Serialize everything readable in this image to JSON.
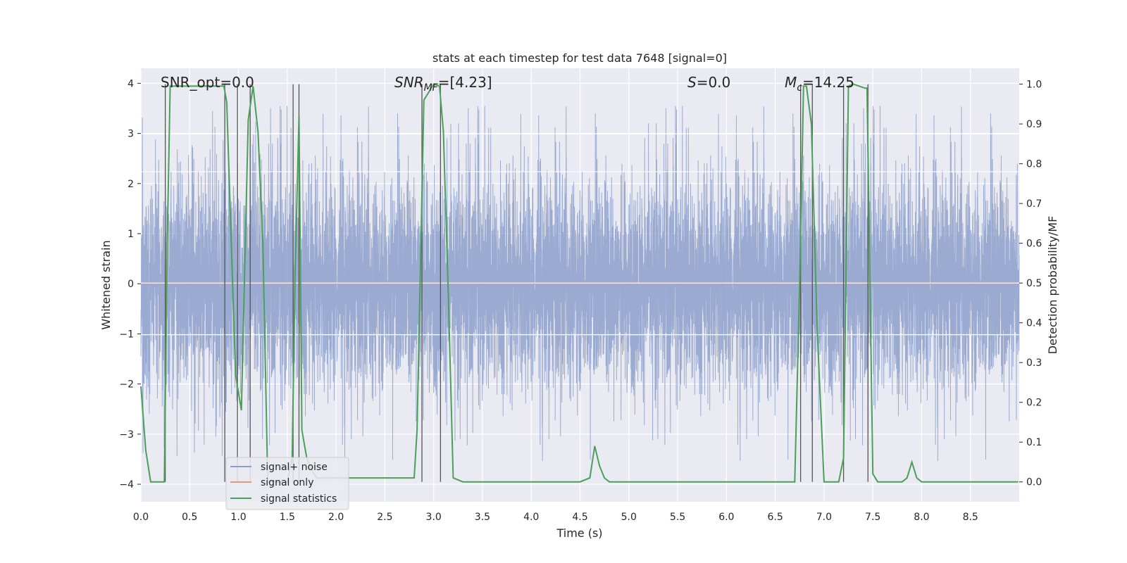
{
  "chart_data": {
    "type": "line",
    "title": "stats at each timestep for test data 7648 [signal=0]",
    "xlabel": "Time (s)",
    "ylabel_left": "Whitened strain",
    "ylabel_right": "Detection probability/MF",
    "xlim": [
      0.0,
      9.0
    ],
    "ylim_left": [
      -4.35,
      4.3
    ],
    "ylim_right": [
      -0.05,
      1.04
    ],
    "grid": true,
    "legend_position": "lower-left",
    "x_ticks": [
      "0.0",
      "0.5",
      "1.0",
      "1.5",
      "2.0",
      "2.5",
      "3.0",
      "3.5",
      "4.0",
      "4.5",
      "5.0",
      "5.5",
      "6.0",
      "6.5",
      "7.0",
      "7.5",
      "8.0",
      "8.5"
    ],
    "y_ticks_left": [
      "4",
      "3",
      "2",
      "1",
      "0",
      "−1",
      "−2",
      "−3",
      "−4"
    ],
    "y_ticks_right": [
      "1.0",
      "0.9",
      "0.8",
      "0.7",
      "0.6",
      "0.5",
      "0.4",
      "0.3",
      "0.2",
      "0.1",
      "0.0"
    ],
    "annotations": {
      "snr_opt": "SNR_opt=0.0",
      "snr_mf_main": "SNR",
      "snr_mf_sub": "MF",
      "snr_mf_value": "=[4.23]",
      "s_symbol": "S",
      "s_value": "=0.0",
      "mc_main": "M",
      "mc_sub": "c",
      "mc_value": "=14.25"
    },
    "series": [
      {
        "name": "signal+ noise",
        "color": "#8c9fcb",
        "axis": "left",
        "duration": 9.0,
        "sample_rate": 1024,
        "typical_amplitude": 1.6,
        "peak_amplitude": 3.6
      },
      {
        "name": "signal only",
        "color": "#e5977a",
        "axis": "left",
        "x": [
          0.0,
          9.0
        ],
        "y": [
          0.0,
          0.0
        ]
      },
      {
        "name": "signal statistics",
        "color": "#4c9f5a",
        "axis": "right",
        "x": [
          0.0,
          0.05,
          0.1,
          0.24,
          0.27,
          0.3,
          0.85,
          0.88,
          0.97,
          1.03,
          1.1,
          1.15,
          1.2,
          1.25,
          1.3,
          1.5,
          1.55,
          1.58,
          1.62,
          1.65,
          1.7,
          1.75,
          1.8,
          2.8,
          2.83,
          2.9,
          3.0,
          3.06,
          3.1,
          3.15,
          3.2,
          3.3,
          3.5,
          4.5,
          4.6,
          4.65,
          4.7,
          4.75,
          4.8,
          5.5,
          6.5,
          6.7,
          6.75,
          6.79,
          6.82,
          6.87,
          6.93,
          7.0,
          7.05,
          7.15,
          7.2,
          7.25,
          7.3,
          7.42,
          7.44,
          7.5,
          7.55,
          7.8,
          7.85,
          7.9,
          7.95,
          8.0,
          8.5,
          8.99
        ],
        "y": [
          0.24,
          0.08,
          0.0,
          0.0,
          0.6,
          0.995,
          0.995,
          0.955,
          0.27,
          0.18,
          0.91,
          0.995,
          0.88,
          0.6,
          0.0,
          0.0,
          0.06,
          0.52,
          0.92,
          0.13,
          0.06,
          0.03,
          0.01,
          0.01,
          0.13,
          0.96,
          1.0,
          0.995,
          0.88,
          0.47,
          0.01,
          0.0,
          0.0,
          0.0,
          0.01,
          0.09,
          0.04,
          0.01,
          0.0,
          0.0,
          0.0,
          0.0,
          0.5,
          0.995,
          0.995,
          0.9,
          0.38,
          0.0,
          0.0,
          0.0,
          0.06,
          0.995,
          1.0,
          0.99,
          0.99,
          0.02,
          0.0,
          0.0,
          0.01,
          0.05,
          0.01,
          0.0,
          0.0,
          0.0
        ]
      }
    ],
    "vertical_markers": [
      0.25,
      0.86,
      0.99,
      1.12,
      1.56,
      1.62,
      2.88,
      3.07,
      6.76,
      6.88,
      7.2,
      7.45
    ],
    "horizontal_reference_lines": [
      0.875,
      0.78,
      0.5,
      0.37
    ],
    "colors": {
      "plot_bg": "#eaeaf2",
      "grid": "#ffffff",
      "marker_line": "#555555",
      "text": "#262626"
    }
  }
}
